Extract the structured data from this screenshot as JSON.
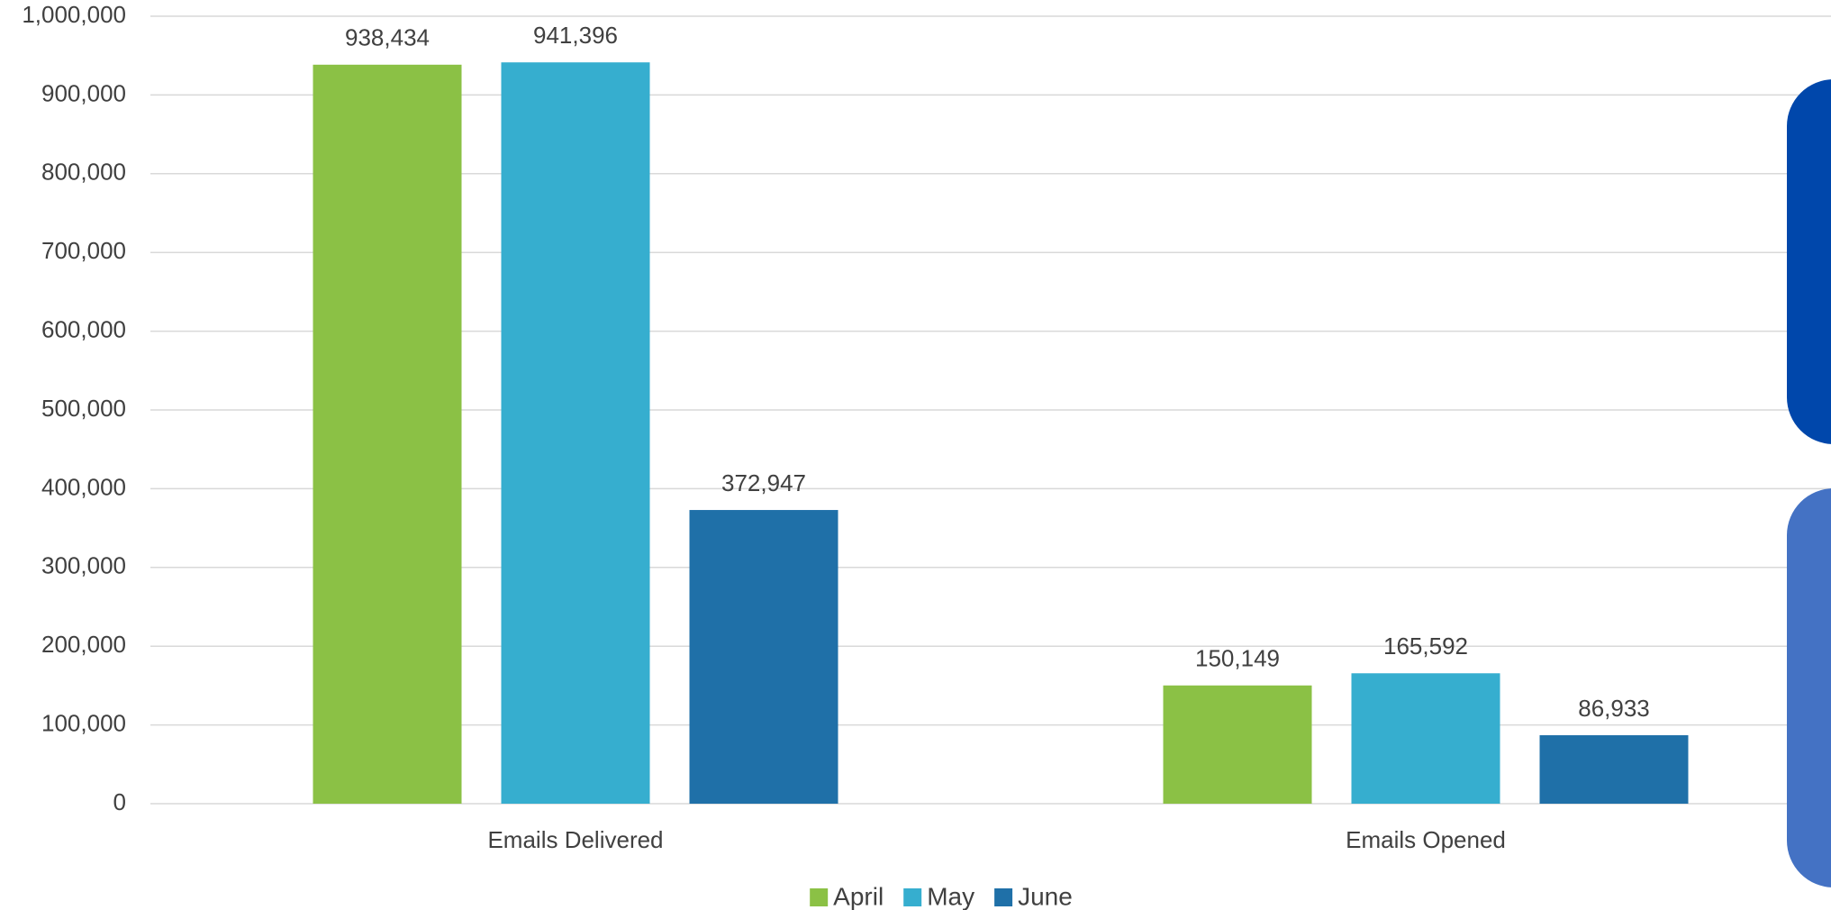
{
  "chart_data": {
    "type": "bar",
    "categories": [
      "Emails Delivered",
      "Emails Opened"
    ],
    "series": [
      {
        "name": "April",
        "color": "#8bc145",
        "values": [
          938434,
          150149
        ],
        "value_labels": [
          "938,434",
          "150,149"
        ]
      },
      {
        "name": "May",
        "color": "#36aecf",
        "values": [
          941396,
          165592
        ],
        "value_labels": [
          "941,396",
          "165,592"
        ]
      },
      {
        "name": "June",
        "color": "#1f70a8",
        "values": [
          372947,
          86933
        ],
        "value_labels": [
          "372,947",
          "86,933"
        ]
      }
    ],
    "ylim": [
      0,
      1000000
    ],
    "yticks": [
      {
        "value": 0,
        "label": "0"
      },
      {
        "value": 100000,
        "label": "100,000"
      },
      {
        "value": 200000,
        "label": "200,000"
      },
      {
        "value": 300000,
        "label": "300,000"
      },
      {
        "value": 400000,
        "label": "400,000"
      },
      {
        "value": 500000,
        "label": "500,000"
      },
      {
        "value": 600000,
        "label": "600,000"
      },
      {
        "value": 700000,
        "label": "700,000"
      },
      {
        "value": 800000,
        "label": "800,000"
      },
      {
        "value": 900000,
        "label": "900,000"
      },
      {
        "value": 1000000,
        "label": "1,000,000"
      }
    ],
    "grid": true,
    "legend": "bottom"
  }
}
